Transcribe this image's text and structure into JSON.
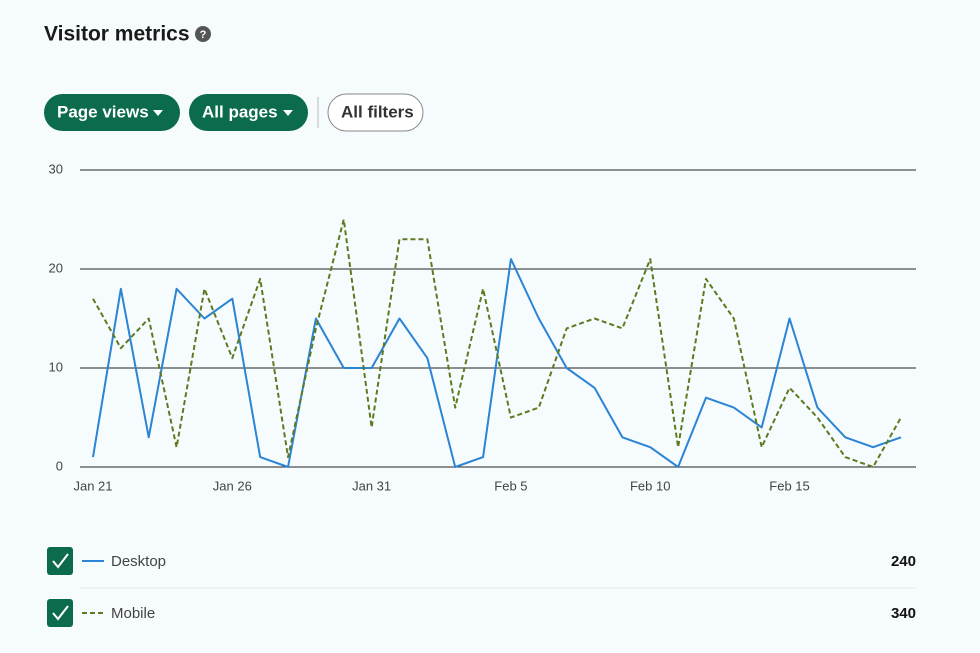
{
  "header": {
    "title": "Visitor metrics"
  },
  "filters": [
    "Page views",
    "All pages",
    "All filters"
  ],
  "chart_data": {
    "type": "line",
    "categories": [
      "Jan 21",
      null,
      null,
      null,
      null,
      "Jan 26",
      null,
      null,
      null,
      null,
      "Jan 31",
      null,
      null,
      null,
      null,
      "Feb 5",
      null,
      null,
      null,
      null,
      "Feb 10",
      null,
      null,
      null,
      null,
      "Feb 15",
      null,
      null,
      null,
      null
    ],
    "series": [
      {
        "name": "Desktop",
        "color": "#2b84d4",
        "line_style": "solid",
        "total": 240,
        "values": [
          1,
          18,
          3,
          18,
          15,
          17,
          1,
          0,
          15,
          10,
          10,
          15,
          11,
          0,
          1,
          21,
          15,
          10,
          8,
          3,
          2,
          0,
          7,
          6,
          4,
          15,
          6,
          3,
          2,
          3
        ]
      },
      {
        "name": "Mobile",
        "color": "#5d7a1e",
        "line_style": "dashed",
        "total": 340,
        "values": [
          17,
          12,
          15,
          2,
          18,
          11,
          19,
          1,
          14,
          25,
          4,
          23,
          23,
          6,
          18,
          5,
          6,
          14,
          15,
          14,
          21,
          2,
          19,
          15,
          2,
          8,
          5,
          1,
          0,
          5
        ]
      }
    ],
    "ylim": [
      0,
      30
    ],
    "yticks": [
      0,
      10,
      20,
      30
    ],
    "grid": true
  }
}
